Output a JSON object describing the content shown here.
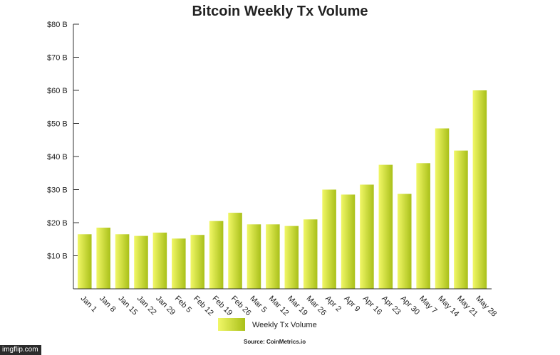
{
  "chart_data": {
    "type": "bar",
    "title": "Bitcoin Weekly Tx Volume",
    "categories": [
      "Jan 1",
      "Jan 8",
      "Jan 15",
      "Jan 22",
      "Jan 29",
      "Feb 5",
      "Feb 12",
      "Feb 19",
      "Feb 26",
      "Mar 5",
      "Mar 12",
      "Mar 19",
      "Mar 26",
      "Apr 2",
      "Apr 9",
      "Apr 16",
      "Apr 23",
      "Apr 30",
      "May 7",
      "May 14",
      "May 21",
      "May 28"
    ],
    "series": [
      {
        "name": "Weekly Tx Volume",
        "values": [
          16.5,
          18.5,
          16.5,
          16,
          17,
          15.2,
          16.3,
          20.5,
          23,
          19.5,
          19.5,
          19,
          21,
          30,
          28.5,
          31.5,
          37.5,
          28.7,
          38,
          48.5,
          41.8,
          60
        ]
      }
    ],
    "ylim": [
      0,
      80
    ],
    "yticks": [
      10,
      20,
      30,
      40,
      50,
      60,
      70,
      80
    ],
    "ytick_labels": [
      "$10 B",
      "$20 B",
      "$30 B",
      "$40 B",
      "$50 B",
      "$60 B",
      "$70 B",
      "$80 B"
    ],
    "xlabel": "",
    "ylabel": "",
    "legend": {
      "label": "Weekly Tx Volume",
      "placement": "bottom-center"
    },
    "source": "Source: CoinMetrics.io",
    "colors": {
      "bar_light": "#f1f767",
      "bar_dark": "#a9c019",
      "axis": "#333333"
    }
  },
  "watermark": "imgflip.com"
}
